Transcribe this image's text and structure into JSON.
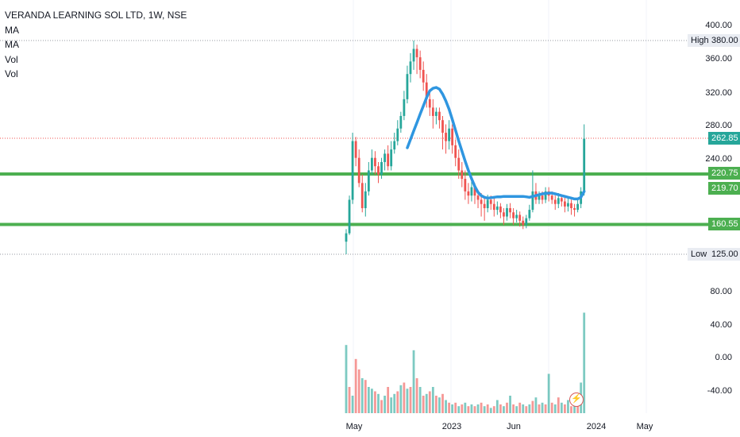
{
  "legend": {
    "title": "VERANDA LEARNING SOL LTD, 1W, NSE",
    "indicators": [
      "MA",
      "MA",
      "Vol",
      "Vol"
    ]
  },
  "price_tags": {
    "high_label": "High",
    "high_value": "380.00",
    "low_label": "Low",
    "low_value": "125.00",
    "last_price": "262.85",
    "line1": "220.75",
    "line2": "219.70",
    "line3": "160.55"
  },
  "colors": {
    "up": "#26a69a",
    "down": "#ef5350",
    "ma": "#2f96e0",
    "hline": "#4caf50",
    "grid": "#f0f3fa"
  },
  "chart_data": {
    "type": "candlestick",
    "price_axis_ticks": [
      "400.00",
      "380.00",
      "360.00",
      "320.00",
      "280.00",
      "240.00",
      "220.75",
      "219.70",
      "160.55",
      "125.00"
    ],
    "volume_axis_ticks": [
      "80.00",
      "40.00",
      "0.00",
      "-40.00"
    ],
    "x_axis_ticks": [
      "May",
      "2023",
      "Jun",
      "2024",
      "May"
    ],
    "horizontal_levels": [
      220.75,
      160.55
    ],
    "high": 380.0,
    "low": 125.0,
    "last": 262.85,
    "candles": [
      [
        140,
        150,
        125,
        155
      ],
      [
        150,
        190,
        148,
        195
      ],
      [
        190,
        260,
        185,
        270
      ],
      [
        260,
        240,
        230,
        265
      ],
      [
        240,
        210,
        205,
        250
      ],
      [
        210,
        180,
        175,
        220
      ],
      [
        180,
        200,
        170,
        210
      ],
      [
        200,
        225,
        195,
        235
      ],
      [
        225,
        240,
        220,
        250
      ],
      [
        240,
        230,
        220,
        248
      ],
      [
        230,
        220,
        210,
        235
      ],
      [
        220,
        235,
        215,
        240
      ],
      [
        235,
        245,
        225,
        250
      ],
      [
        245,
        230,
        225,
        255
      ],
      [
        230,
        250,
        225,
        260
      ],
      [
        250,
        260,
        245,
        270
      ],
      [
        260,
        275,
        255,
        285
      ],
      [
        275,
        290,
        270,
        295
      ],
      [
        290,
        310,
        285,
        320
      ],
      [
        310,
        340,
        305,
        350
      ],
      [
        340,
        355,
        330,
        365
      ],
      [
        355,
        370,
        345,
        380
      ],
      [
        370,
        360,
        340,
        375
      ],
      [
        360,
        345,
        335,
        368
      ],
      [
        345,
        330,
        320,
        355
      ],
      [
        330,
        310,
        300,
        340
      ],
      [
        310,
        300,
        290,
        320
      ],
      [
        300,
        290,
        275,
        310
      ],
      [
        290,
        295,
        280,
        300
      ],
      [
        295,
        285,
        275,
        300
      ],
      [
        285,
        270,
        250,
        290
      ],
      [
        270,
        260,
        245,
        280
      ],
      [
        260,
        275,
        250,
        285
      ],
      [
        275,
        255,
        245,
        280
      ],
      [
        255,
        240,
        230,
        262
      ],
      [
        240,
        225,
        215,
        250
      ],
      [
        225,
        215,
        205,
        235
      ],
      [
        215,
        200,
        190,
        225
      ],
      [
        200,
        195,
        185,
        210
      ],
      [
        195,
        205,
        188,
        212
      ],
      [
        205,
        195,
        185,
        210
      ],
      [
        195,
        190,
        180,
        200
      ],
      [
        190,
        185,
        170,
        198
      ],
      [
        185,
        180,
        165,
        192
      ],
      [
        180,
        190,
        175,
        196
      ],
      [
        190,
        185,
        178,
        195
      ],
      [
        185,
        178,
        170,
        192
      ],
      [
        178,
        182,
        172,
        188
      ],
      [
        182,
        175,
        168,
        186
      ],
      [
        175,
        170,
        160,
        180
      ],
      [
        170,
        180,
        165,
        185
      ],
      [
        180,
        175,
        168,
        186
      ],
      [
        175,
        168,
        160,
        180
      ],
      [
        168,
        172,
        163,
        178
      ],
      [
        172,
        165,
        158,
        176
      ],
      [
        165,
        160,
        155,
        170
      ],
      [
        160,
        168,
        156,
        172
      ],
      [
        168,
        178,
        165,
        184
      ],
      [
        178,
        200,
        175,
        225
      ],
      [
        200,
        190,
        185,
        210
      ],
      [
        190,
        195,
        185,
        200
      ],
      [
        195,
        190,
        185,
        200
      ],
      [
        190,
        200,
        186,
        205
      ],
      [
        200,
        195,
        188,
        205
      ],
      [
        195,
        190,
        185,
        200
      ],
      [
        190,
        185,
        178,
        195
      ],
      [
        185,
        192,
        180,
        198
      ],
      [
        192,
        188,
        182,
        196
      ],
      [
        188,
        182,
        175,
        195
      ],
      [
        182,
        186,
        176,
        192
      ],
      [
        186,
        180,
        172,
        190
      ],
      [
        180,
        178,
        170,
        185
      ],
      [
        178,
        185,
        175,
        190
      ],
      [
        185,
        200,
        180,
        205
      ],
      [
        200,
        262.85,
        195,
        280
      ]
    ],
    "ma_series": [
      [
        19,
        252
      ],
      [
        20,
        262
      ],
      [
        21,
        272
      ],
      [
        22,
        282
      ],
      [
        23,
        292
      ],
      [
        24,
        302
      ],
      [
        25,
        312
      ],
      [
        26,
        320
      ],
      [
        27,
        323
      ],
      [
        28,
        324
      ],
      [
        29,
        322
      ],
      [
        30,
        316
      ],
      [
        31,
        308
      ],
      [
        32,
        298
      ],
      [
        33,
        286
      ],
      [
        34,
        273
      ],
      [
        35,
        260
      ],
      [
        36,
        248
      ],
      [
        37,
        236
      ],
      [
        38,
        225
      ],
      [
        39,
        215
      ],
      [
        40,
        206
      ],
      [
        41,
        199
      ],
      [
        42,
        195
      ],
      [
        43,
        193
      ],
      [
        44,
        192
      ],
      [
        45,
        192.5
      ],
      [
        46,
        193
      ],
      [
        47,
        193.5
      ],
      [
        48,
        193.5
      ],
      [
        49,
        194
      ],
      [
        50,
        194
      ],
      [
        51,
        194
      ],
      [
        52,
        194
      ],
      [
        53,
        194
      ],
      [
        54,
        194
      ],
      [
        55,
        194
      ],
      [
        56,
        193.5
      ],
      [
        57,
        193
      ],
      [
        58,
        194
      ],
      [
        59,
        195
      ],
      [
        60,
        196
      ],
      [
        61,
        197
      ],
      [
        62,
        197.5
      ],
      [
        63,
        198
      ],
      [
        64,
        198
      ],
      [
        65,
        197
      ],
      [
        66,
        196
      ],
      [
        67,
        195
      ],
      [
        68,
        194
      ],
      [
        69,
        193
      ],
      [
        70,
        192
      ],
      [
        71,
        191
      ],
      [
        72,
        191
      ],
      [
        73,
        193
      ],
      [
        74,
        200
      ]
    ],
    "volumes": [
      [
        78,
        "u"
      ],
      [
        30,
        "d"
      ],
      [
        20,
        "u"
      ],
      [
        62,
        "d"
      ],
      [
        50,
        "d"
      ],
      [
        40,
        "u"
      ],
      [
        38,
        "d"
      ],
      [
        30,
        "u"
      ],
      [
        28,
        "u"
      ],
      [
        25,
        "d"
      ],
      [
        22,
        "u"
      ],
      [
        15,
        "d"
      ],
      [
        20,
        "u"
      ],
      [
        30,
        "d"
      ],
      [
        18,
        "u"
      ],
      [
        22,
        "u"
      ],
      [
        25,
        "d"
      ],
      [
        32,
        "u"
      ],
      [
        35,
        "d"
      ],
      [
        28,
        "u"
      ],
      [
        30,
        "d"
      ],
      [
        72,
        "u"
      ],
      [
        40,
        "d"
      ],
      [
        30,
        "u"
      ],
      [
        20,
        "d"
      ],
      [
        22,
        "u"
      ],
      [
        25,
        "d"
      ],
      [
        30,
        "u"
      ],
      [
        20,
        "d"
      ],
      [
        18,
        "u"
      ],
      [
        22,
        "d"
      ],
      [
        15,
        "u"
      ],
      [
        12,
        "d"
      ],
      [
        10,
        "u"
      ],
      [
        12,
        "d"
      ],
      [
        8,
        "u"
      ],
      [
        10,
        "d"
      ],
      [
        12,
        "u"
      ],
      [
        8,
        "d"
      ],
      [
        10,
        "u"
      ],
      [
        8,
        "d"
      ],
      [
        10,
        "u"
      ],
      [
        12,
        "d"
      ],
      [
        8,
        "u"
      ],
      [
        10,
        "d"
      ],
      [
        6,
        "u"
      ],
      [
        8,
        "d"
      ],
      [
        15,
        "u"
      ],
      [
        10,
        "d"
      ],
      [
        8,
        "u"
      ],
      [
        12,
        "d"
      ],
      [
        20,
        "u"
      ],
      [
        10,
        "d"
      ],
      [
        8,
        "u"
      ],
      [
        12,
        "d"
      ],
      [
        10,
        "u"
      ],
      [
        8,
        "d"
      ],
      [
        10,
        "u"
      ],
      [
        14,
        "d"
      ],
      [
        18,
        "u"
      ],
      [
        10,
        "d"
      ],
      [
        12,
        "u"
      ],
      [
        10,
        "d"
      ],
      [
        45,
        "u"
      ],
      [
        12,
        "d"
      ],
      [
        10,
        "u"
      ],
      [
        18,
        "d"
      ],
      [
        12,
        "u"
      ],
      [
        10,
        "d"
      ],
      [
        15,
        "u"
      ],
      [
        8,
        "d"
      ],
      [
        12,
        "u"
      ],
      [
        10,
        "d"
      ],
      [
        35,
        "u"
      ],
      [
        115,
        "u"
      ]
    ]
  }
}
